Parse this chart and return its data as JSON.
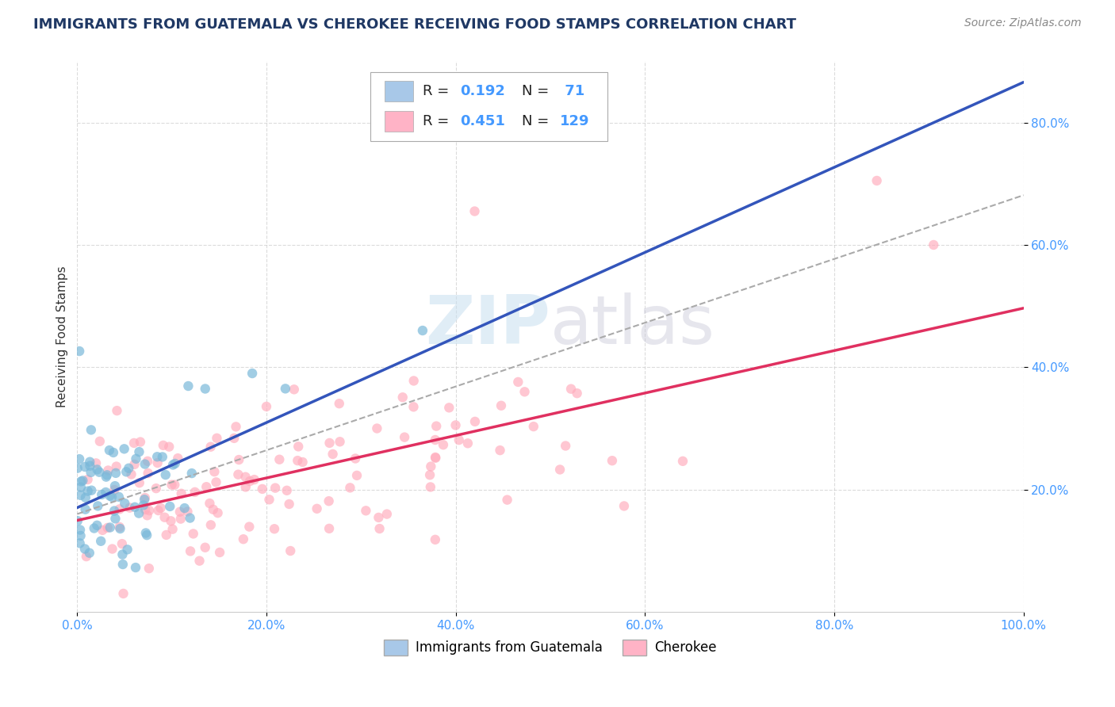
{
  "title": "IMMIGRANTS FROM GUATEMALA VS CHEROKEE RECEIVING FOOD STAMPS CORRELATION CHART",
  "source": "Source: ZipAtlas.com",
  "ylabel": "Receiving Food Stamps",
  "xlim": [
    0.0,
    1.0
  ],
  "ylim": [
    0.0,
    0.9
  ],
  "xticks": [
    0.0,
    0.2,
    0.4,
    0.6,
    0.8,
    1.0
  ],
  "xtick_labels": [
    "0.0%",
    "20.0%",
    "40.0%",
    "60.0%",
    "80.0%",
    "100.0%"
  ],
  "yticks": [
    0.2,
    0.4,
    0.6,
    0.8
  ],
  "ytick_labels": [
    "20.0%",
    "40.0%",
    "60.0%",
    "80.0%"
  ],
  "legend1_color": "#a8c8e8",
  "legend2_color": "#ffb3c6",
  "scatter1_color": "#7ab8d9",
  "scatter2_color": "#ffaabb",
  "line1_color": "#3355bb",
  "line2_color": "#e03060",
  "line_dash_color": "#aaaaaa",
  "title_color": "#1f3864",
  "title_fontsize": 13,
  "source_fontsize": 10,
  "tick_color": "#4499ff",
  "ylabel_color": "#333333",
  "R1": 0.192,
  "N1": 71,
  "R2": 0.451,
  "N2": 129,
  "seed1": 42,
  "seed2": 99
}
